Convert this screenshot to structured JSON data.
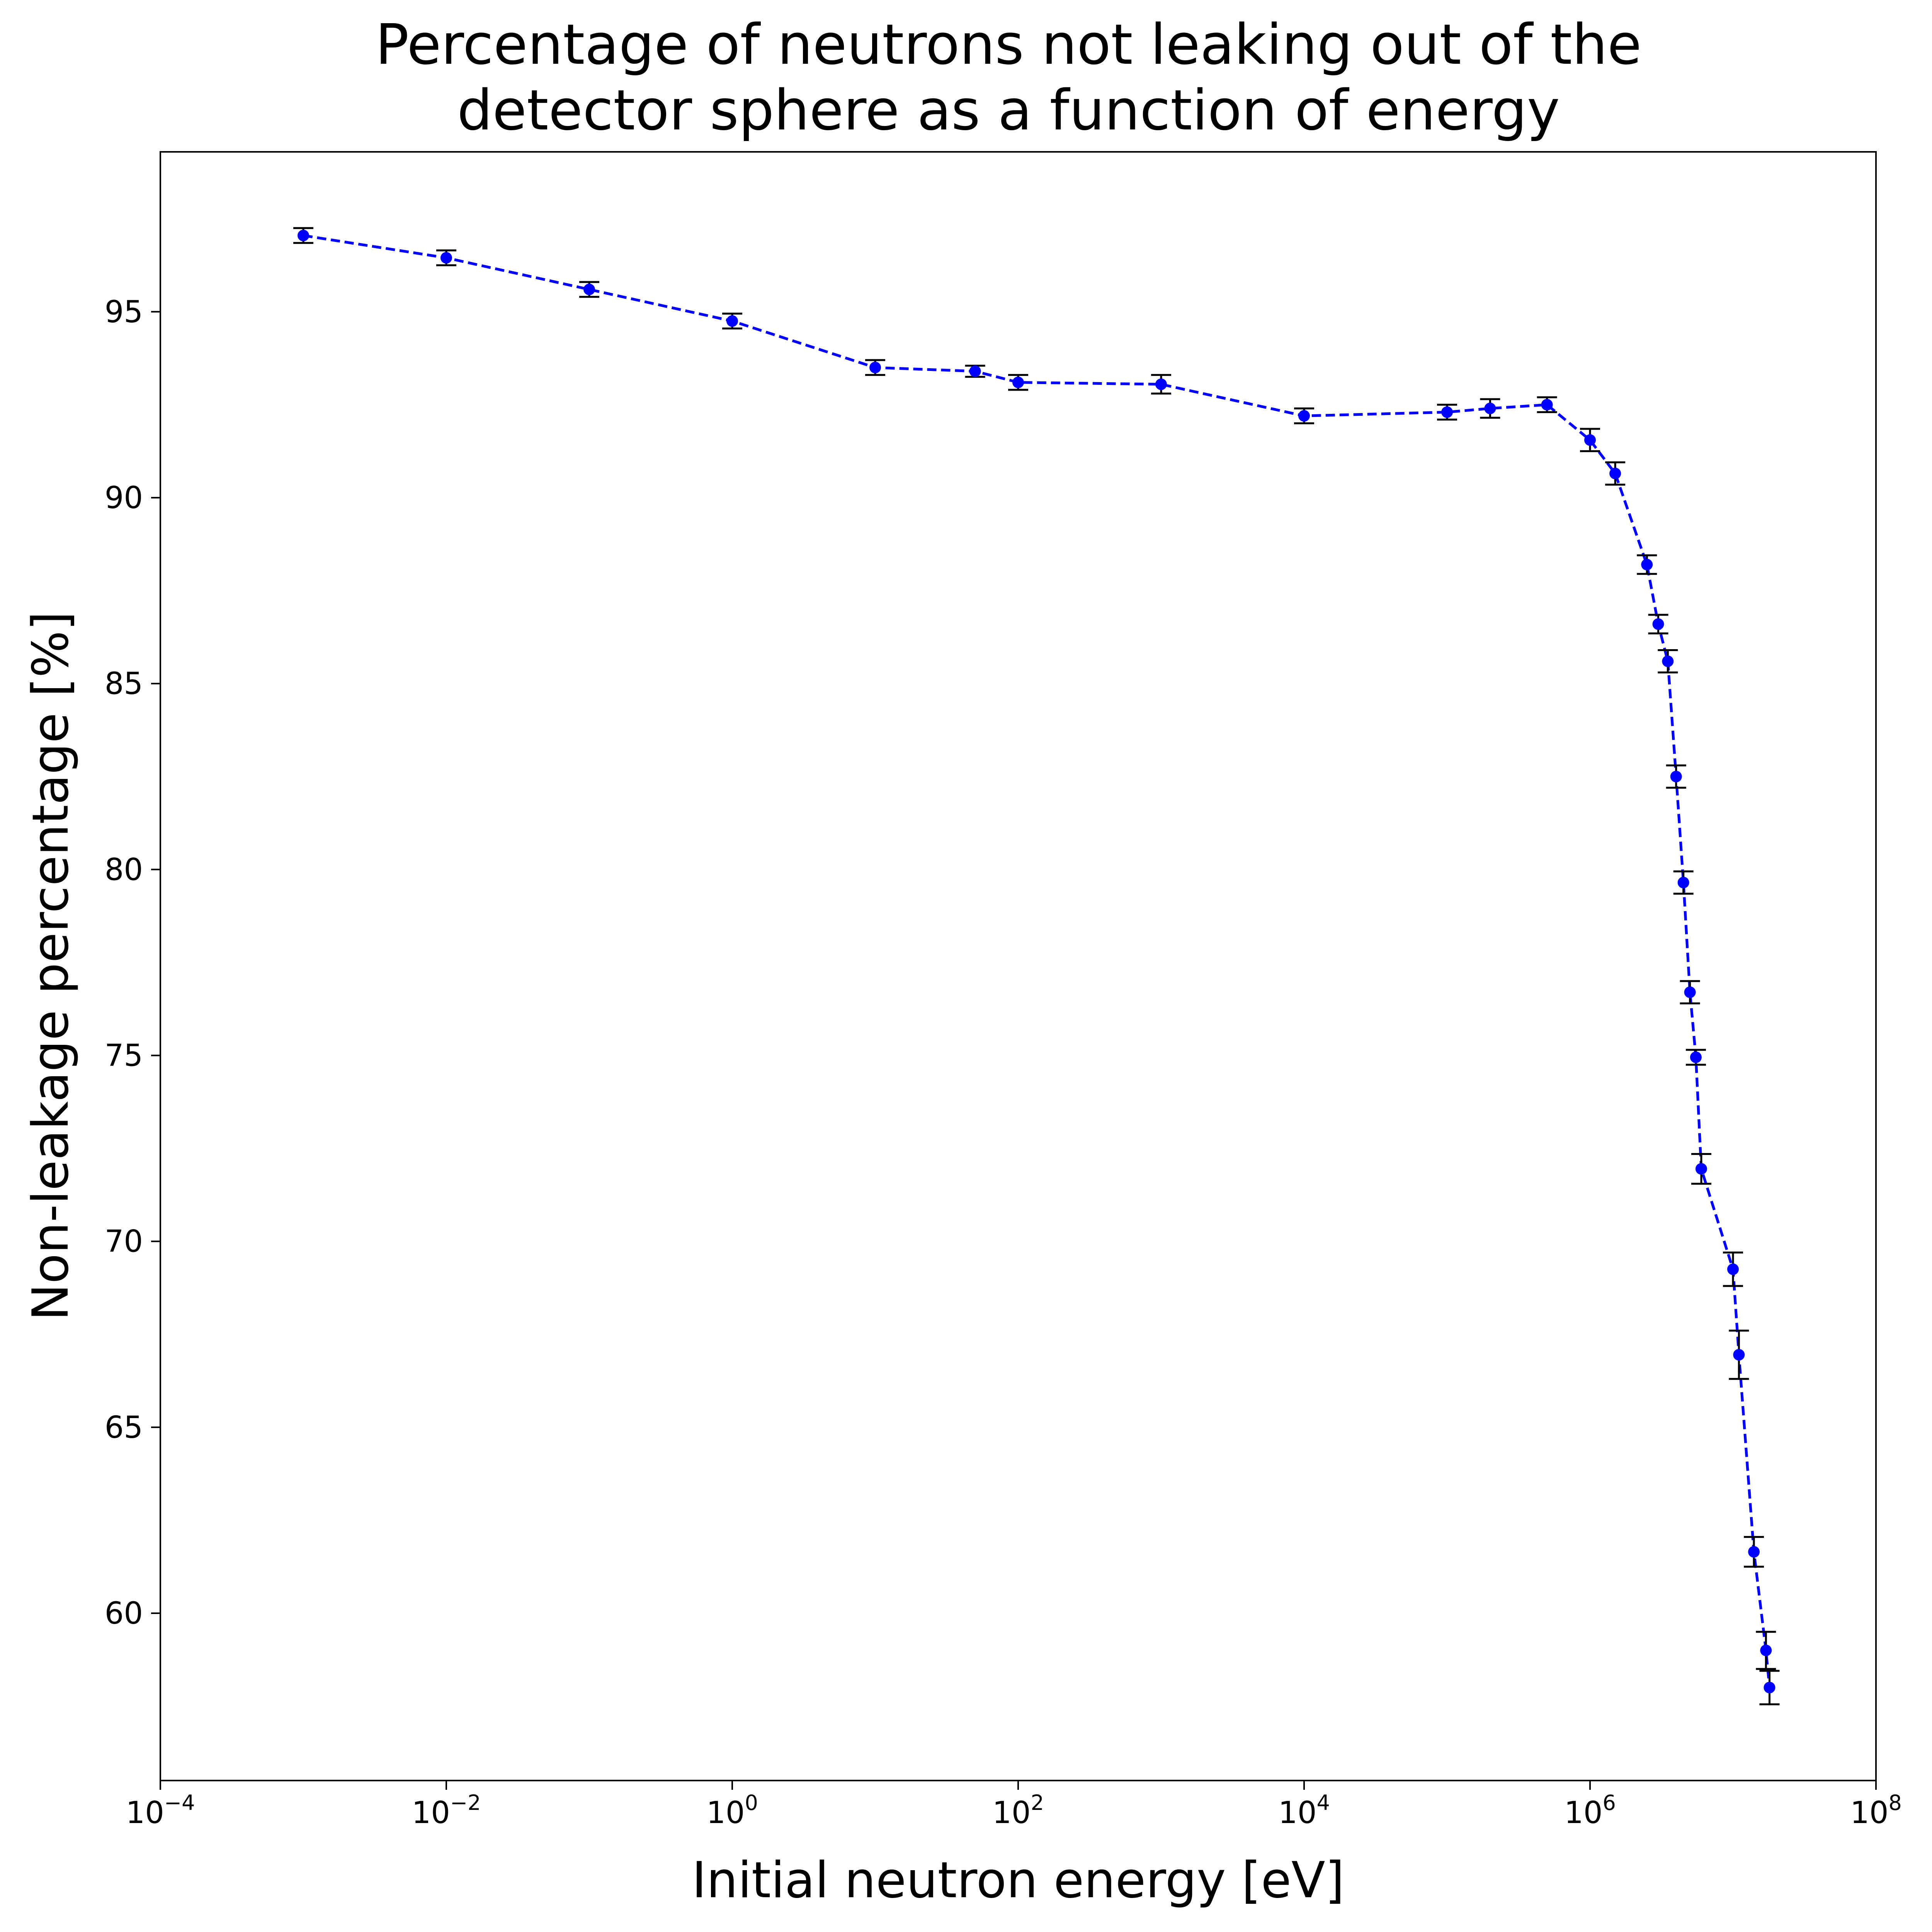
{
  "chart_data": {
    "type": "line",
    "title_lines": [
      "Percentage of neutrons not leaking out of the",
      "detector sphere as a function of energy"
    ],
    "xlabel": "Initial neutron energy [eV]",
    "ylabel": "Non-leakage percentage [%]",
    "xscale": "log",
    "xlim": [
      0.0001,
      100000000
    ],
    "ylim": [
      55.5,
      99.3
    ],
    "x_ticks": [
      {
        "value": 0.0001,
        "base": "10",
        "exp": "−4"
      },
      {
        "value": 0.01,
        "base": "10",
        "exp": "−2"
      },
      {
        "value": 1,
        "base": "10",
        "exp": "0"
      },
      {
        "value": 100,
        "base": "10",
        "exp": "2"
      },
      {
        "value": 10000,
        "base": "10",
        "exp": "4"
      },
      {
        "value": 1000000,
        "base": "10",
        "exp": "6"
      },
      {
        "value": 100000000,
        "base": "10",
        "exp": "8"
      }
    ],
    "y_ticks": [
      60,
      65,
      70,
      75,
      80,
      85,
      90,
      95
    ],
    "grid": false,
    "legend": "none",
    "series": [
      {
        "color": "#0000ff",
        "line_style": "dashed",
        "marker": "circle",
        "errorbar_color": "#000000",
        "points": [
          {
            "x": 0.001,
            "y": 97.05,
            "err": 0.2
          },
          {
            "x": 0.01,
            "y": 96.45,
            "err": 0.2
          },
          {
            "x": 0.1,
            "y": 95.6,
            "err": 0.2
          },
          {
            "x": 1,
            "y": 94.75,
            "err": 0.2
          },
          {
            "x": 10,
            "y": 93.5,
            "err": 0.2
          },
          {
            "x": 50,
            "y": 93.4,
            "err": 0.15
          },
          {
            "x": 100,
            "y": 93.1,
            "err": 0.2
          },
          {
            "x": 1000,
            "y": 93.05,
            "err": 0.25
          },
          {
            "x": 10000,
            "y": 92.2,
            "err": 0.2
          },
          {
            "x": 100000,
            "y": 92.3,
            "err": 0.2
          },
          {
            "x": 200000,
            "y": 92.4,
            "err": 0.25
          },
          {
            "x": 500000,
            "y": 92.5,
            "err": 0.2
          },
          {
            "x": 1000000,
            "y": 91.55,
            "err": 0.3
          },
          {
            "x": 1500000,
            "y": 90.65,
            "err": 0.3
          },
          {
            "x": 2500000,
            "y": 88.2,
            "err": 0.25
          },
          {
            "x": 3000000,
            "y": 86.6,
            "err": 0.25
          },
          {
            "x": 3500000,
            "y": 85.6,
            "err": 0.3
          },
          {
            "x": 4000000,
            "y": 82.5,
            "err": 0.3
          },
          {
            "x": 4500000,
            "y": 79.65,
            "err": 0.3
          },
          {
            "x": 5000000,
            "y": 76.7,
            "err": 0.3
          },
          {
            "x": 5500000,
            "y": 74.95,
            "err": 0.2
          },
          {
            "x": 6000000,
            "y": 71.95,
            "err": 0.4
          },
          {
            "x": 10000000,
            "y": 69.25,
            "err": 0.45
          },
          {
            "x": 11000000,
            "y": 66.95,
            "err": 0.65
          },
          {
            "x": 14000000,
            "y": 61.65,
            "err": 0.4
          },
          {
            "x": 17000000,
            "y": 59.0,
            "err": 0.5
          },
          {
            "x": 18000000,
            "y": 58.0,
            "err": 0.45
          }
        ]
      }
    ]
  }
}
